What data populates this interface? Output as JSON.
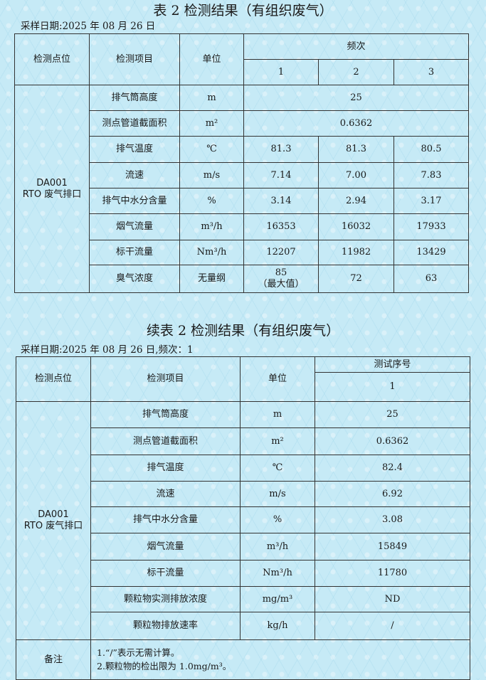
{
  "table1": {
    "title": "表 2 检测结果（有组织废气）",
    "date": "采样日期:2025 年 08 月 26 日",
    "headers": {
      "point": "检测点位",
      "item": "检测项目",
      "unit": "单位",
      "group": "频次",
      "cols": [
        "1",
        "2",
        "3"
      ]
    },
    "point": [
      "DA001",
      "RTO 废气排口"
    ],
    "rows": [
      {
        "item": "排气筒高度",
        "unit": "m",
        "merged": "25"
      },
      {
        "item": "测点管道截面积",
        "unit": "m²",
        "merged": "0.6362"
      },
      {
        "item": "排气温度",
        "unit": "℃",
        "values": [
          "81.3",
          "81.3",
          "80.5"
        ]
      },
      {
        "item": "流速",
        "unit": "m/s",
        "values": [
          "7.14",
          "7.00",
          "7.83"
        ]
      },
      {
        "item": "排气中水分含量",
        "unit": "%",
        "values": [
          "3.14",
          "2.94",
          "3.17"
        ]
      },
      {
        "item": "烟气流量",
        "unit": "m³/h",
        "values": [
          "16353",
          "16032",
          "17933"
        ]
      },
      {
        "item": "标干流量",
        "unit": "Nm³/h",
        "values": [
          "12207",
          "11982",
          "13429"
        ]
      },
      {
        "item": "臭气浓度",
        "unit": "无量纲",
        "values": [
          "85",
          "72",
          "63"
        ],
        "note": "（最大值）"
      }
    ]
  },
  "table2": {
    "title": "续表 2 检测结果（有组织废气）",
    "date": "采样日期:2025 年 08 月 26 日,频次：1",
    "headers": {
      "point": "检测点位",
      "item": "检测项目",
      "unit": "单位",
      "group": "测试序号",
      "col": "1"
    },
    "point": [
      "DA001",
      "RTO 废气排口"
    ],
    "rows": [
      {
        "item": "排气筒高度",
        "unit": "m",
        "value": "25"
      },
      {
        "item": "测点管道截面积",
        "unit": "m²",
        "value": "0.6362"
      },
      {
        "item": "排气温度",
        "unit": "℃",
        "value": "82.4"
      },
      {
        "item": "流速",
        "unit": "m/s",
        "value": "6.92"
      },
      {
        "item": "排气中水分含量",
        "unit": "%",
        "value": "3.08"
      },
      {
        "item": "烟气流量",
        "unit": "m³/h",
        "value": "15849"
      },
      {
        "item": "标干流量",
        "unit": "Nm³/h",
        "value": "11780"
      },
      {
        "item": "颗粒物实测排放浓度",
        "unit": "mg/m³",
        "value": "ND"
      },
      {
        "item": "颗粒物排放速率",
        "unit": "kg/h",
        "value": "/"
      }
    ],
    "remarks_label": "备注",
    "remarks": [
      "1.“/”表示无需计算。",
      "2.颗粒物的检出限为 1.0mg/m³。"
    ]
  }
}
